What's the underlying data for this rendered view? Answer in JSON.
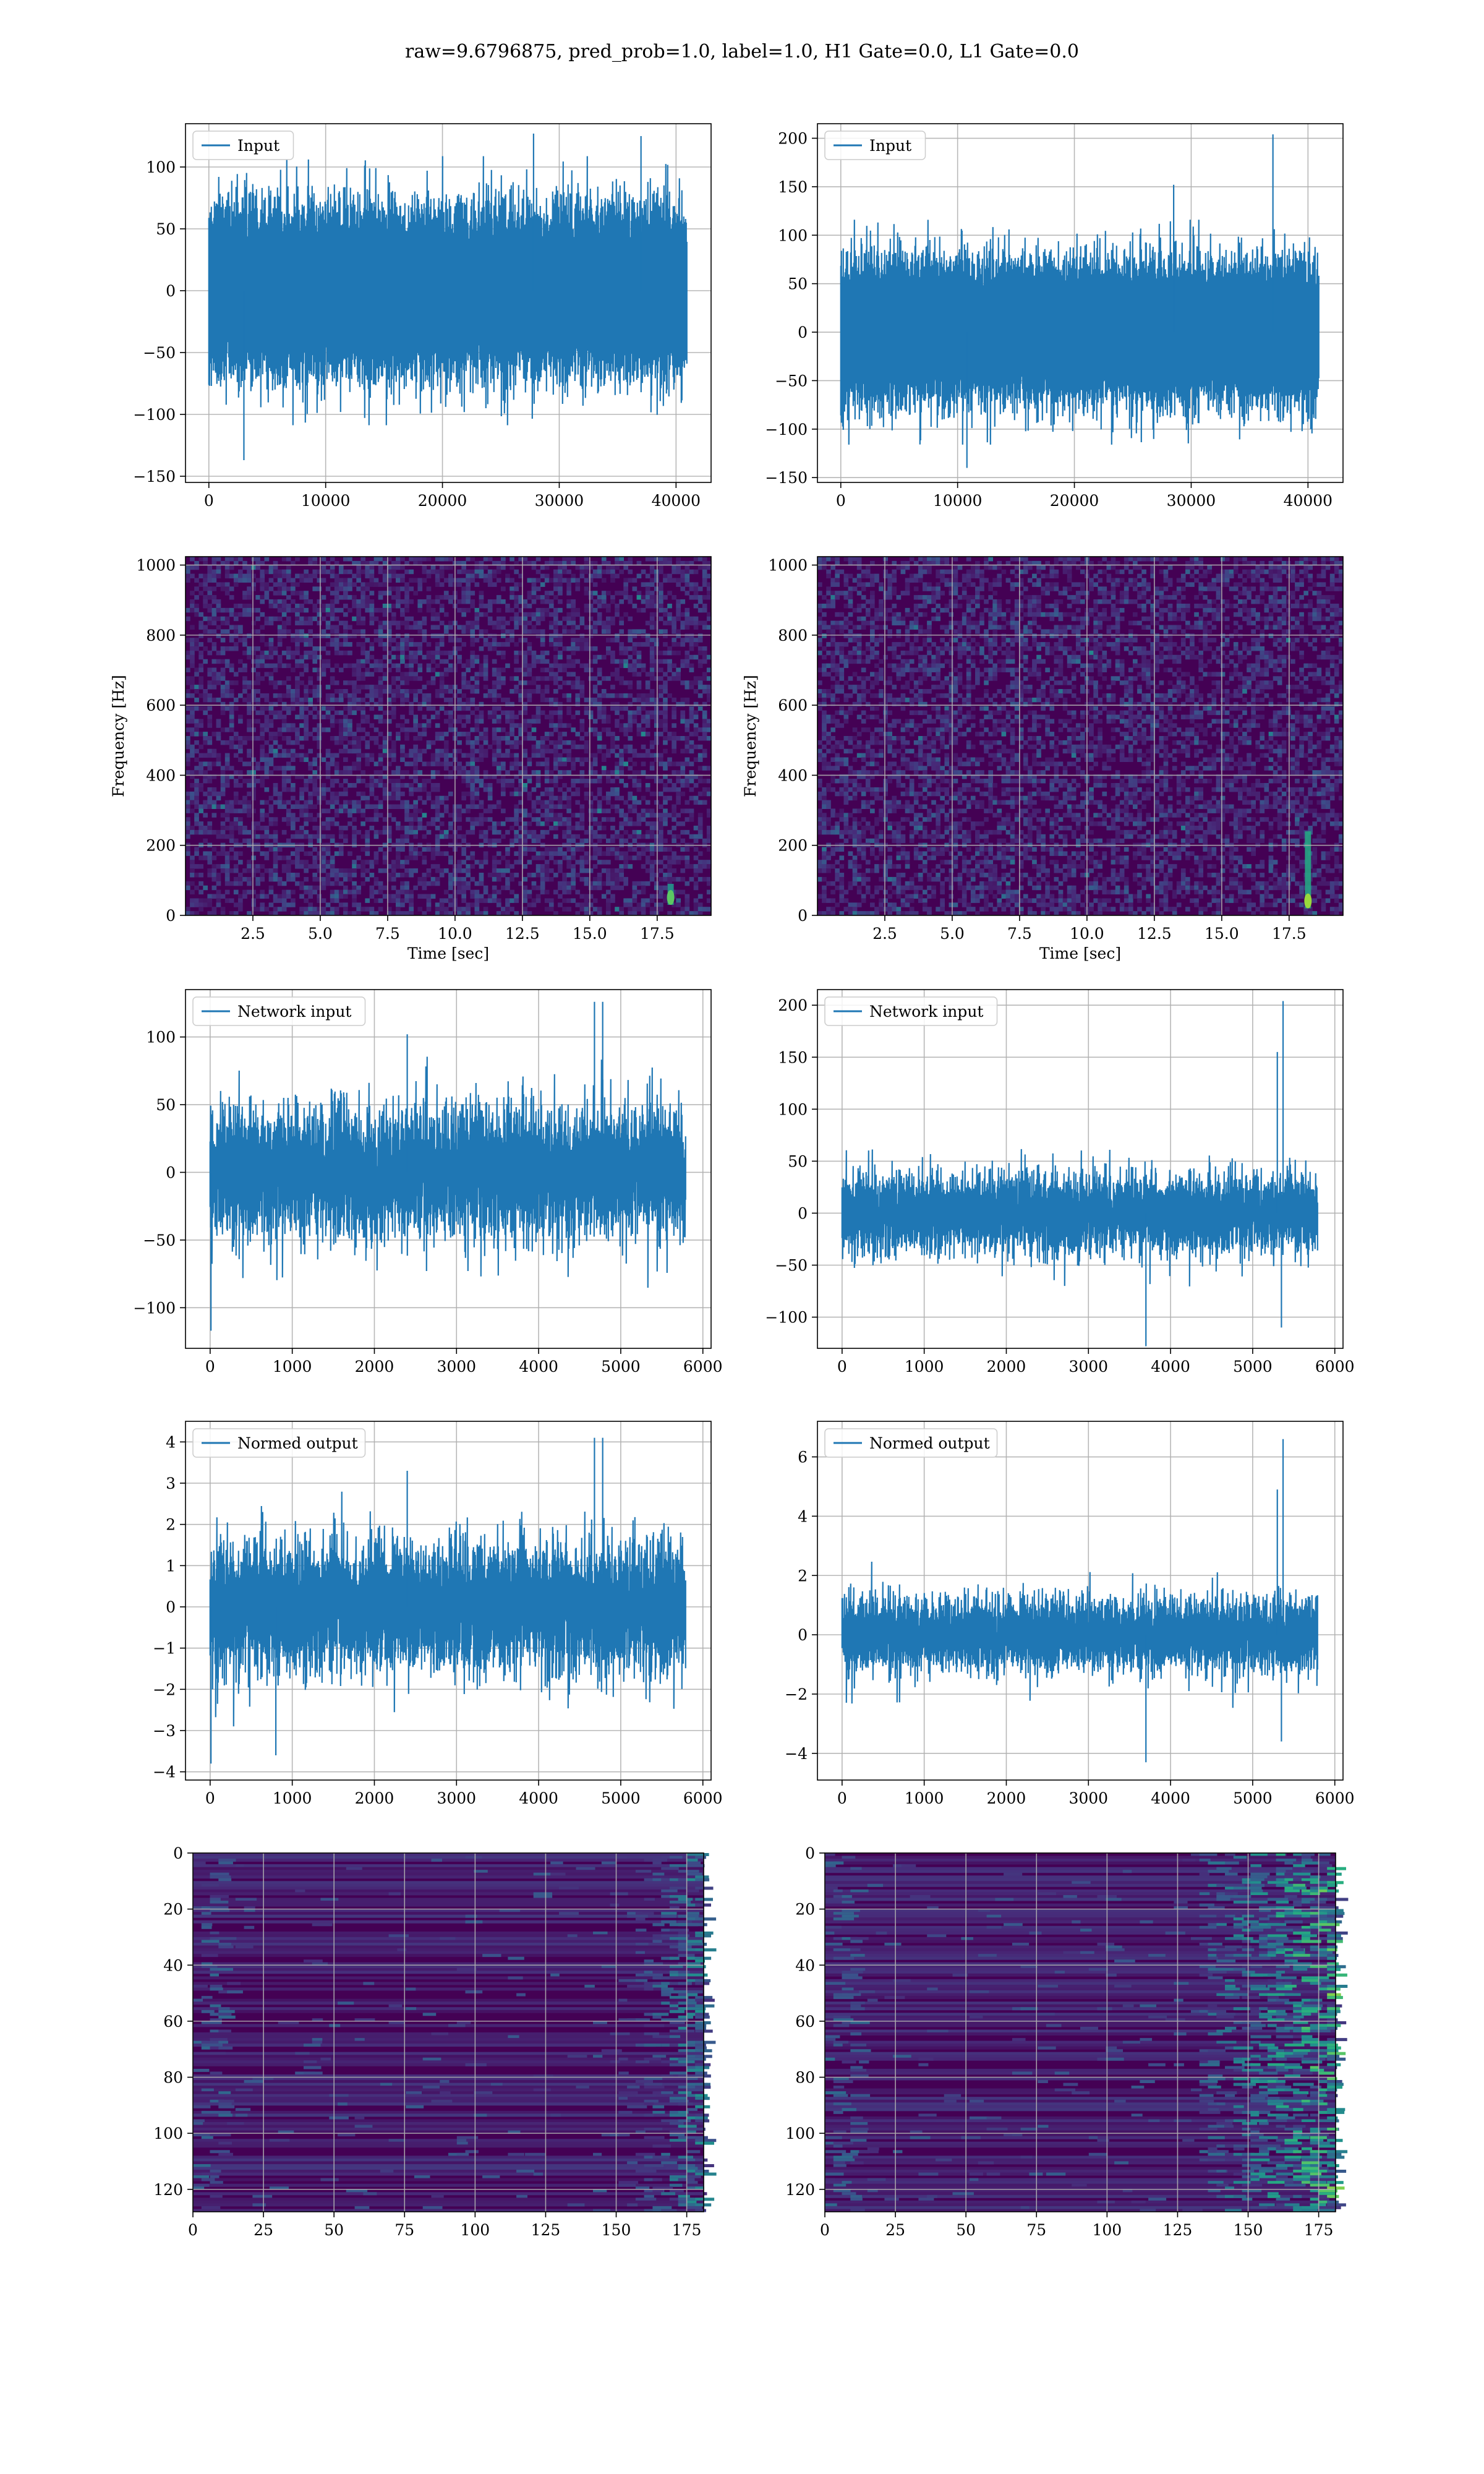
{
  "figure": {
    "suptitle": "raw=9.6796875, pred_prob=1.0, label=1.0, H1 Gate=0.0, L1 Gate=0.0"
  },
  "colors": {
    "line": "#1f77b4",
    "grid": "#b0b0b0",
    "viridis_low": "#440154",
    "viridis_mid": "#21918c",
    "viridis_high": "#fde725"
  },
  "chart_data": [
    {
      "id": "input-h1",
      "type": "line",
      "legend": "Input",
      "legend_loc": "upper left",
      "xlim": [
        -2000,
        43000
      ],
      "ylim": [
        -155,
        135
      ],
      "xticks": [
        0,
        10000,
        20000,
        30000,
        40000
      ],
      "yticks": [
        -150,
        -100,
        -50,
        0,
        50,
        100
      ],
      "n_points": 40960,
      "x_start": 0,
      "x_end": 40960,
      "noise_std": 28,
      "envelope_p99": 75,
      "extremes": [
        [
          3000,
          -137
        ],
        [
          27800,
          127
        ],
        [
          37000,
          125
        ]
      ],
      "grid": true
    },
    {
      "id": "input-l1",
      "type": "line",
      "legend": "Input",
      "legend_loc": "upper left",
      "xlim": [
        -2000,
        43000
      ],
      "ylim": [
        -155,
        215
      ],
      "xticks": [
        0,
        10000,
        20000,
        30000,
        40000
      ],
      "yticks": [
        -150,
        -100,
        -50,
        0,
        50,
        100,
        150,
        200
      ],
      "n_points": 40960,
      "x_start": 0,
      "x_end": 40960,
      "noise_std": 30,
      "envelope_p99": 80,
      "extremes": [
        [
          10800,
          -140
        ],
        [
          37000,
          204
        ],
        [
          28500,
          152
        ]
      ],
      "grid": true
    },
    {
      "id": "spec-h1",
      "type": "heatmap",
      "colormap": "viridis",
      "xlabel": "Time [sec]",
      "ylabel": "Frequency [Hz]",
      "xlim": [
        0.0,
        19.5
      ],
      "ylim": [
        0,
        1024
      ],
      "xticks": [
        2.5,
        5.0,
        7.5,
        10.0,
        12.5,
        15.0,
        17.5
      ],
      "yticks": [
        0,
        200,
        400,
        600,
        800,
        1000
      ],
      "bright_spot": {
        "t": 18.0,
        "f_range": [
          30,
          90
        ],
        "intensity": 0.75
      },
      "grid": true
    },
    {
      "id": "spec-l1",
      "type": "heatmap",
      "colormap": "viridis",
      "xlabel": "Time [sec]",
      "ylabel": "Frequency [Hz]",
      "xlim": [
        0.0,
        19.5
      ],
      "ylim": [
        0,
        1024
      ],
      "xticks": [
        2.5,
        5.0,
        7.5,
        10.0,
        12.5,
        15.0,
        17.5
      ],
      "yticks": [
        0,
        200,
        400,
        600,
        800,
        1000
      ],
      "bright_spot": {
        "t": 18.2,
        "f_range": [
          20,
          240
        ],
        "intensity": 0.85
      },
      "grid": true
    },
    {
      "id": "netin-h1",
      "type": "line",
      "legend": "Network input",
      "legend_loc": "upper left",
      "xlim": [
        -300,
        6100
      ],
      "ylim": [
        -130,
        135
      ],
      "xticks": [
        0,
        1000,
        2000,
        3000,
        4000,
        5000,
        6000
      ],
      "yticks": [
        -100,
        -50,
        0,
        50,
        100
      ],
      "n_points": 5800,
      "x_start": 0,
      "x_end": 5800,
      "noise_std": 23,
      "envelope_p99": 60,
      "extremes": [
        [
          10,
          -117
        ],
        [
          4680,
          126
        ],
        [
          4780,
          126
        ],
        [
          2400,
          102
        ]
      ],
      "grid": true
    },
    {
      "id": "netin-l1",
      "type": "line",
      "legend": "Network input",
      "legend_loc": "upper left",
      "xlim": [
        -300,
        6100
      ],
      "ylim": [
        -130,
        215
      ],
      "xticks": [
        0,
        1000,
        2000,
        3000,
        4000,
        5000,
        6000
      ],
      "yticks": [
        -100,
        -50,
        0,
        50,
        100,
        150,
        200
      ],
      "n_points": 5800,
      "x_start": 0,
      "x_end": 5800,
      "noise_std": 18,
      "envelope_p99": 50,
      "extremes": [
        [
          5370,
          204
        ],
        [
          5300,
          155
        ],
        [
          3700,
          -128
        ],
        [
          5350,
          -110
        ]
      ],
      "grid": true
    },
    {
      "id": "norm-h1",
      "type": "line",
      "legend": "Normed output",
      "legend_loc": "upper left",
      "xlim": [
        -300,
        6100
      ],
      "ylim": [
        -4.2,
        4.5
      ],
      "xticks": [
        0,
        1000,
        2000,
        3000,
        4000,
        5000,
        6000
      ],
      "yticks": [
        -4,
        -3,
        -2,
        -1,
        0,
        1,
        2,
        3,
        4
      ],
      "n_points": 5800,
      "x_start": 0,
      "x_end": 5800,
      "noise_std": 0.75,
      "envelope_p99": 2.0,
      "extremes": [
        [
          10,
          -3.8
        ],
        [
          4680,
          4.1
        ],
        [
          4780,
          4.1
        ],
        [
          2400,
          3.3
        ],
        [
          800,
          -3.6
        ]
      ],
      "grid": true
    },
    {
      "id": "norm-l1",
      "type": "line",
      "legend": "Normed output",
      "legend_loc": "upper left",
      "xlim": [
        -300,
        6100
      ],
      "ylim": [
        -4.9,
        7.2
      ],
      "xticks": [
        0,
        1000,
        2000,
        3000,
        4000,
        5000,
        6000
      ],
      "yticks": [
        -4,
        -2,
        0,
        2,
        4,
        6
      ],
      "n_points": 5800,
      "x_start": 0,
      "x_end": 5800,
      "noise_std": 0.6,
      "envelope_p99": 1.7,
      "extremes": [
        [
          5370,
          6.6
        ],
        [
          5300,
          4.9
        ],
        [
          3700,
          -4.3
        ],
        [
          5350,
          -3.6
        ]
      ],
      "grid": true
    },
    {
      "id": "feat-h1",
      "type": "heatmap",
      "colormap": "viridis",
      "xlim": [
        0,
        181
      ],
      "ylim": [
        128,
        0
      ],
      "xticks": [
        0,
        25,
        50,
        75,
        100,
        125,
        150,
        175
      ],
      "yticks": [
        0,
        20,
        40,
        60,
        80,
        100,
        120
      ],
      "rows": 128,
      "cols": 181,
      "hot_region": {
        "col_from": 150,
        "strength": 0.55
      },
      "grid": true
    },
    {
      "id": "feat-l1",
      "type": "heatmap",
      "colormap": "viridis",
      "xlim": [
        0,
        181
      ],
      "ylim": [
        128,
        0
      ],
      "xticks": [
        0,
        25,
        50,
        75,
        100,
        125,
        150,
        175
      ],
      "yticks": [
        0,
        20,
        40,
        60,
        80,
        100,
        120
      ],
      "rows": 128,
      "cols": 181,
      "hot_region": {
        "col_from": 130,
        "strength": 0.85
      },
      "grid": true
    }
  ]
}
